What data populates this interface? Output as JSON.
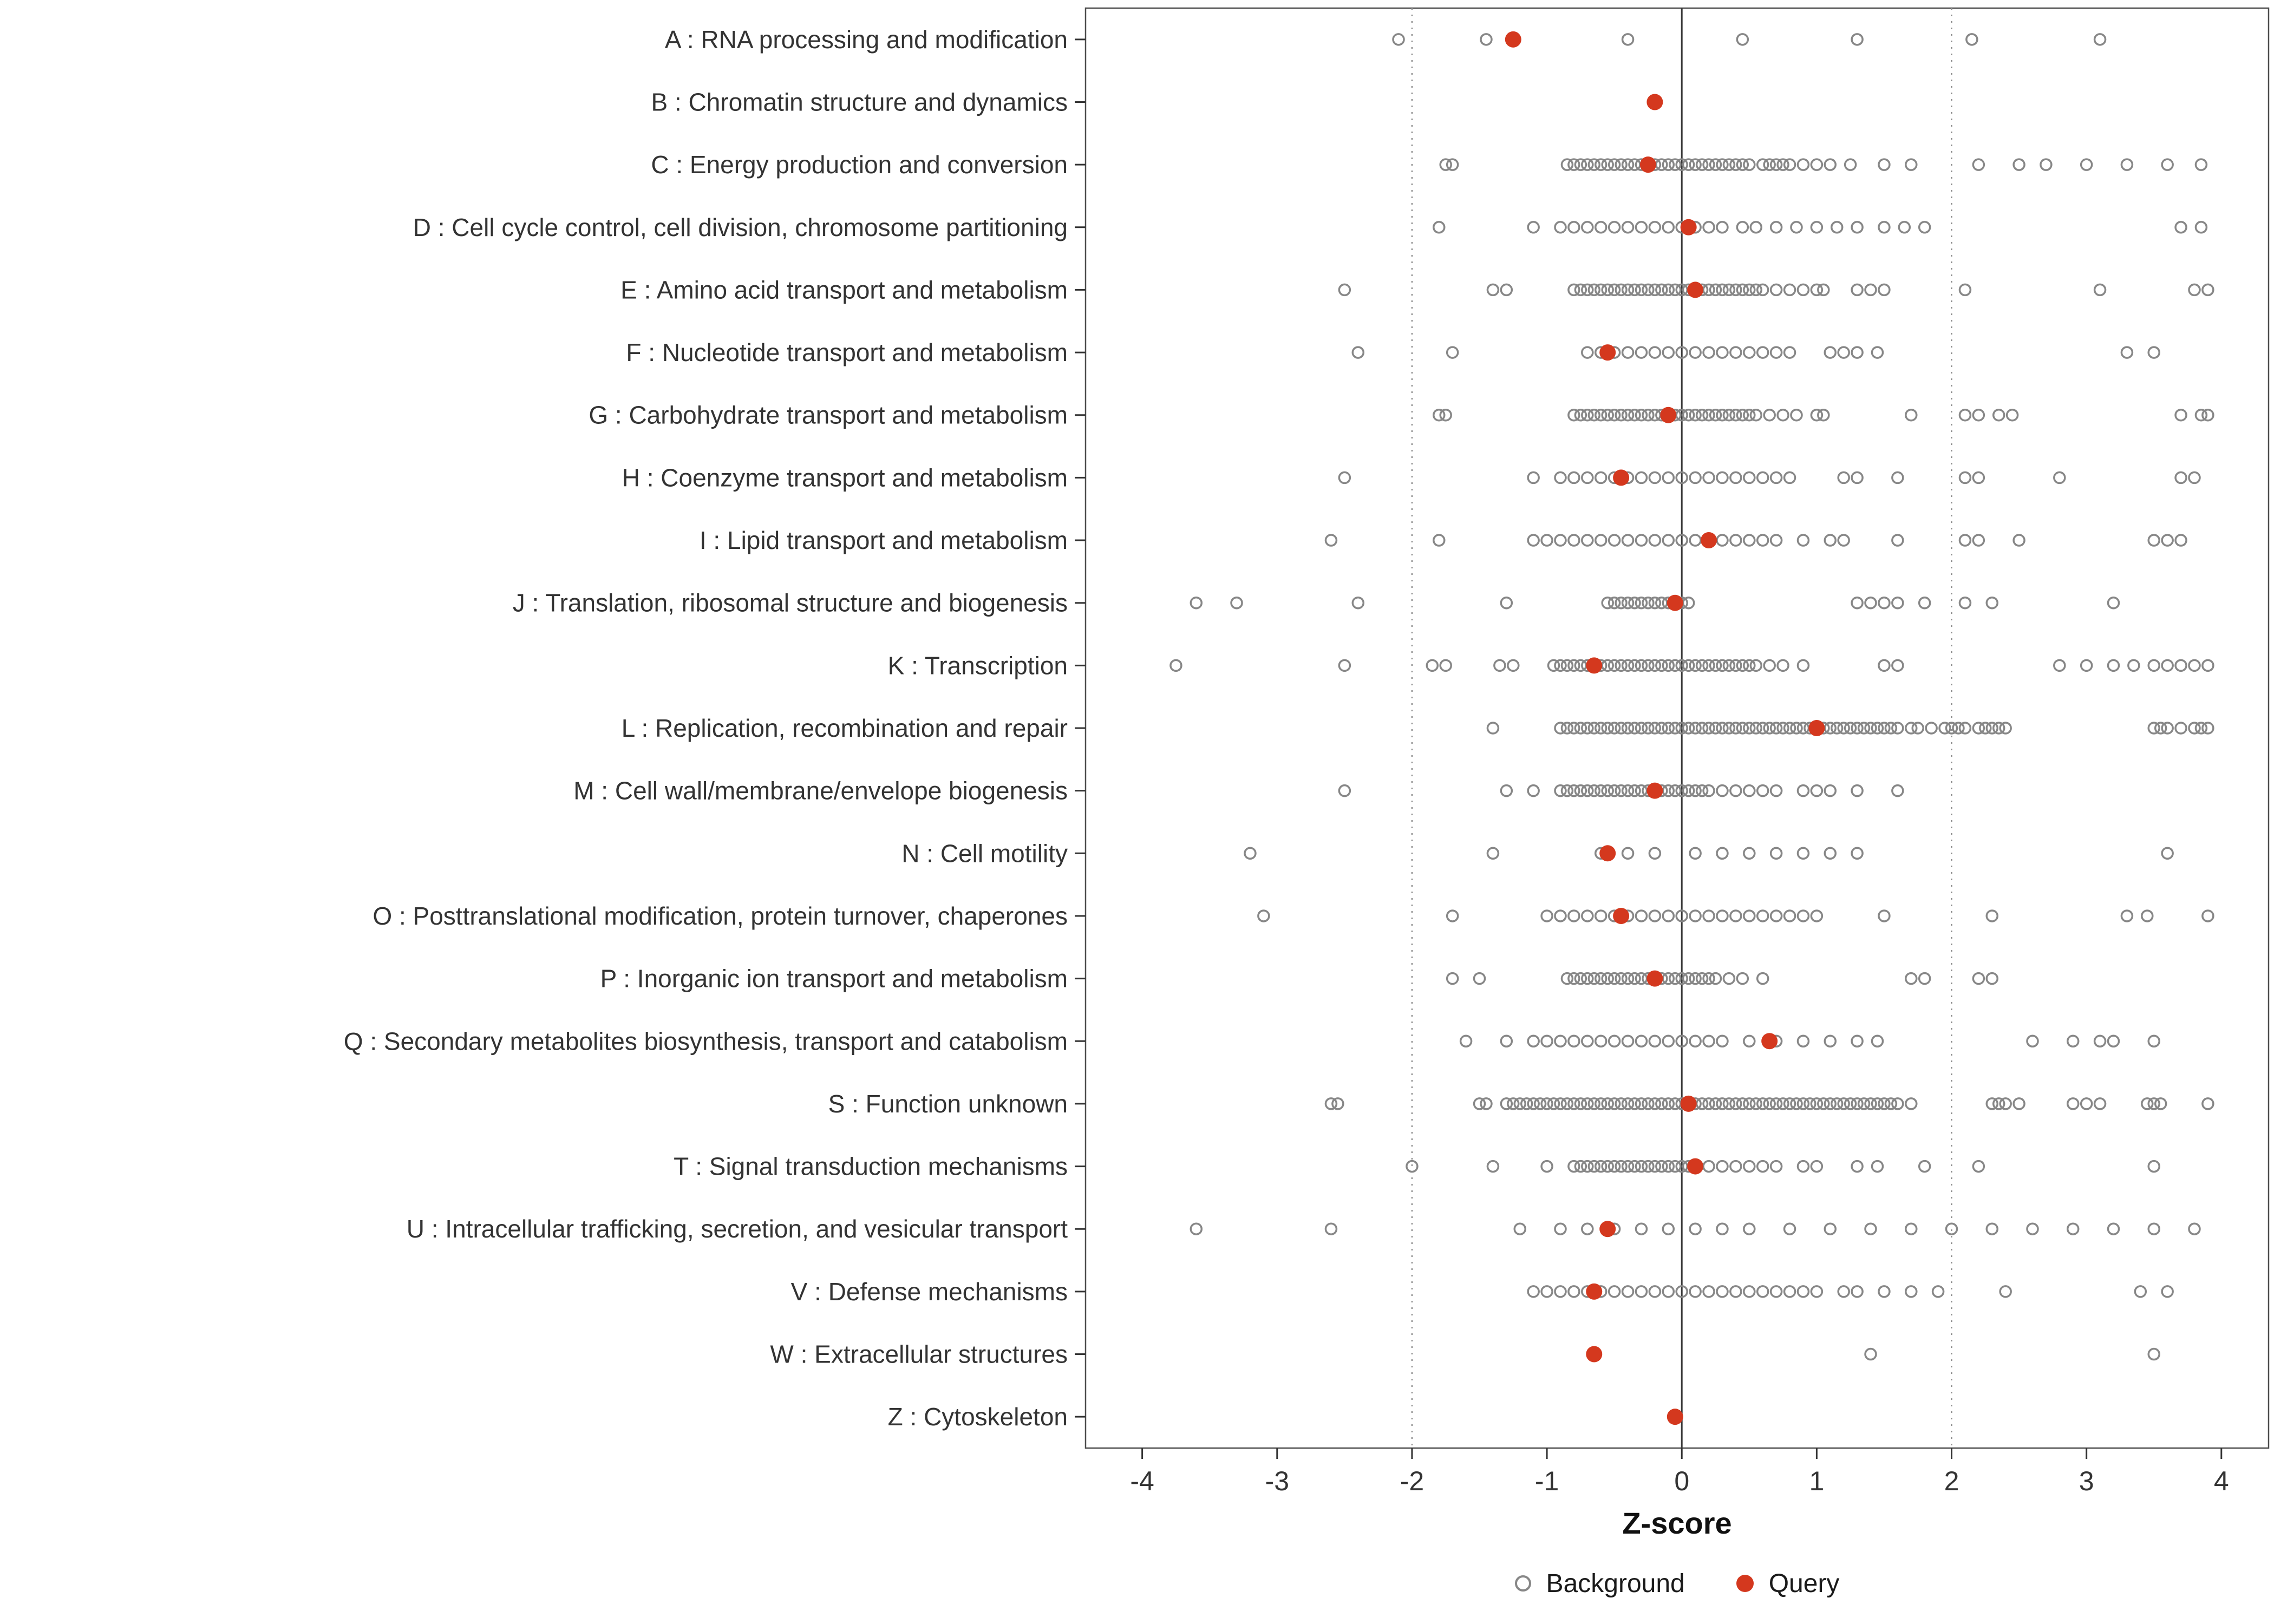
{
  "legend": {
    "items": [
      {
        "label": "Background",
        "type": "open-circle",
        "color": "#878787"
      },
      {
        "label": "Query",
        "type": "filled-circle",
        "color": "#d4381e"
      }
    ]
  },
  "chart_data": {
    "type": "scatter",
    "subtype": "horizontal-strip-plot",
    "title": "",
    "xlabel": "Z-score",
    "ylabel": "",
    "xlim": [
      -4.42,
      4.35
    ],
    "xticks": [
      -4,
      -3,
      -2,
      -1,
      0,
      1,
      2,
      3,
      4
    ],
    "guides": {
      "solid": [
        0
      ],
      "dotted": [
        -2,
        2
      ]
    },
    "legend_position": "bottom",
    "colors": {
      "background": "#878787",
      "query": "#d4381e",
      "axis_text": "#333333",
      "panel_border": "#4d4d4d",
      "zero_line": "#3c3c3c",
      "dotted_line": "#8c8c8c"
    },
    "categories": [
      {
        "label": "A : RNA processing and modification",
        "query": -1.25,
        "background": [
          -2.1,
          -1.45,
          -0.4,
          0.45,
          1.3,
          2.15,
          3.1
        ]
      },
      {
        "label": "B : Chromatin structure and dynamics",
        "query": -0.2,
        "background": []
      },
      {
        "label": "C : Energy production and conversion",
        "query": -0.25,
        "background": [
          -1.75,
          -1.7,
          -0.85,
          -0.8,
          -0.75,
          -0.7,
          -0.65,
          -0.6,
          -0.55,
          -0.5,
          -0.45,
          -0.4,
          -0.35,
          -0.3,
          -0.25,
          -0.2,
          -0.15,
          -0.1,
          -0.05,
          0,
          0.05,
          0.1,
          0.15,
          0.2,
          0.25,
          0.3,
          0.35,
          0.4,
          0.45,
          0.5,
          0.6,
          0.65,
          0.7,
          0.75,
          0.8,
          0.9,
          1.0,
          1.1,
          1.25,
          1.5,
          1.7,
          2.2,
          2.5,
          2.7,
          3.0,
          3.3,
          3.6,
          3.85
        ]
      },
      {
        "label": "D : Cell cycle control, cell division, chromosome partitioning",
        "query": 0.05,
        "background": [
          -1.8,
          -1.1,
          -0.9,
          -0.8,
          -0.7,
          -0.6,
          -0.5,
          -0.4,
          -0.3,
          -0.2,
          -0.1,
          0,
          0.1,
          0.2,
          0.3,
          0.45,
          0.55,
          0.7,
          0.85,
          1.0,
          1.15,
          1.3,
          1.5,
          1.65,
          1.8,
          3.7,
          3.85
        ]
      },
      {
        "label": "E : Amino acid transport and metabolism",
        "query": 0.1,
        "background": [
          -2.5,
          -1.4,
          -1.3,
          -0.8,
          -0.75,
          -0.7,
          -0.65,
          -0.6,
          -0.55,
          -0.5,
          -0.45,
          -0.4,
          -0.35,
          -0.3,
          -0.25,
          -0.2,
          -0.15,
          -0.1,
          -0.05,
          0,
          0.05,
          0.1,
          0.15,
          0.2,
          0.25,
          0.3,
          0.35,
          0.4,
          0.45,
          0.5,
          0.55,
          0.6,
          0.7,
          0.8,
          0.9,
          1.0,
          1.05,
          1.3,
          1.4,
          1.5,
          2.1,
          3.1,
          3.8,
          3.9
        ]
      },
      {
        "label": "F : Nucleotide transport and metabolism",
        "query": -0.55,
        "background": [
          -2.4,
          -1.7,
          -0.7,
          -0.6,
          -0.5,
          -0.4,
          -0.3,
          -0.2,
          -0.1,
          0,
          0.1,
          0.2,
          0.3,
          0.4,
          0.5,
          0.6,
          0.7,
          0.8,
          1.1,
          1.2,
          1.3,
          1.45,
          3.3,
          3.5
        ]
      },
      {
        "label": "G : Carbohydrate transport and metabolism",
        "query": -0.1,
        "background": [
          -1.8,
          -1.75,
          -0.8,
          -0.75,
          -0.7,
          -0.65,
          -0.6,
          -0.55,
          -0.5,
          -0.45,
          -0.4,
          -0.35,
          -0.3,
          -0.25,
          -0.2,
          -0.15,
          -0.1,
          -0.05,
          0,
          0.05,
          0.1,
          0.15,
          0.2,
          0.25,
          0.3,
          0.35,
          0.4,
          0.45,
          0.5,
          0.55,
          0.65,
          0.75,
          0.85,
          1.0,
          1.05,
          1.7,
          2.1,
          2.2,
          2.35,
          2.45,
          3.7,
          3.85,
          3.9
        ]
      },
      {
        "label": "H : Coenzyme transport and metabolism",
        "query": -0.45,
        "background": [
          -2.5,
          -1.1,
          -0.9,
          -0.8,
          -0.7,
          -0.6,
          -0.5,
          -0.4,
          -0.3,
          -0.2,
          -0.1,
          0,
          0.1,
          0.2,
          0.3,
          0.4,
          0.5,
          0.6,
          0.7,
          0.8,
          1.2,
          1.3,
          1.6,
          2.1,
          2.2,
          2.8,
          3.7,
          3.8
        ]
      },
      {
        "label": "I : Lipid transport and metabolism",
        "query": 0.2,
        "background": [
          -2.6,
          -1.8,
          -1.1,
          -1.0,
          -0.9,
          -0.8,
          -0.7,
          -0.6,
          -0.5,
          -0.4,
          -0.3,
          -0.2,
          -0.1,
          0,
          0.1,
          0.3,
          0.4,
          0.5,
          0.6,
          0.7,
          0.9,
          1.1,
          1.2,
          1.6,
          2.1,
          2.2,
          2.5,
          3.5,
          3.6,
          3.7
        ]
      },
      {
        "label": "J : Translation, ribosomal structure and biogenesis",
        "query": -0.05,
        "background": [
          -3.6,
          -3.3,
          -2.4,
          -1.3,
          -0.55,
          -0.5,
          -0.45,
          -0.4,
          -0.35,
          -0.3,
          -0.25,
          -0.2,
          -0.15,
          -0.1,
          -0.05,
          0,
          0.05,
          1.3,
          1.4,
          1.5,
          1.6,
          1.8,
          2.1,
          2.3,
          3.2
        ]
      },
      {
        "label": "K : Transcription",
        "query": -0.65,
        "background": [
          -3.75,
          -2.5,
          -1.85,
          -1.75,
          -1.35,
          -1.25,
          -0.95,
          -0.9,
          -0.85,
          -0.8,
          -0.75,
          -0.7,
          -0.65,
          -0.6,
          -0.55,
          -0.5,
          -0.45,
          -0.4,
          -0.35,
          -0.3,
          -0.25,
          -0.2,
          -0.15,
          -0.1,
          -0.05,
          0,
          0.05,
          0.1,
          0.15,
          0.2,
          0.25,
          0.3,
          0.35,
          0.4,
          0.45,
          0.5,
          0.55,
          0.65,
          0.75,
          0.9,
          1.5,
          1.6,
          2.8,
          3.0,
          3.2,
          3.35,
          3.5,
          3.6,
          3.7,
          3.8,
          3.9
        ]
      },
      {
        "label": "L : Replication, recombination and repair",
        "query": 1.0,
        "background": [
          -1.4,
          -0.9,
          -0.85,
          -0.8,
          -0.75,
          -0.7,
          -0.65,
          -0.6,
          -0.55,
          -0.5,
          -0.45,
          -0.4,
          -0.35,
          -0.3,
          -0.25,
          -0.2,
          -0.15,
          -0.1,
          -0.05,
          0,
          0.05,
          0.1,
          0.15,
          0.2,
          0.25,
          0.3,
          0.35,
          0.4,
          0.45,
          0.5,
          0.55,
          0.6,
          0.65,
          0.7,
          0.75,
          0.8,
          0.85,
          0.9,
          0.95,
          1.05,
          1.1,
          1.15,
          1.2,
          1.25,
          1.3,
          1.35,
          1.4,
          1.45,
          1.5,
          1.55,
          1.6,
          1.7,
          1.75,
          1.85,
          1.95,
          2.0,
          2.05,
          2.1,
          2.2,
          2.25,
          2.3,
          2.35,
          2.4,
          3.5,
          3.55,
          3.6,
          3.7,
          3.8,
          3.85,
          3.9
        ]
      },
      {
        "label": "M : Cell wall/membrane/envelope biogenesis",
        "query": -0.2,
        "background": [
          -2.5,
          -1.3,
          -1.1,
          -0.9,
          -0.85,
          -0.8,
          -0.75,
          -0.7,
          -0.65,
          -0.6,
          -0.55,
          -0.5,
          -0.45,
          -0.4,
          -0.35,
          -0.3,
          -0.25,
          -0.2,
          -0.15,
          -0.1,
          -0.05,
          0,
          0.05,
          0.1,
          0.15,
          0.2,
          0.3,
          0.4,
          0.5,
          0.6,
          0.7,
          0.9,
          1.0,
          1.1,
          1.3,
          1.6
        ]
      },
      {
        "label": "N : Cell motility",
        "query": -0.55,
        "background": [
          -3.2,
          -1.4,
          -0.6,
          -0.4,
          -0.2,
          0.1,
          0.3,
          0.5,
          0.7,
          0.9,
          1.1,
          1.3,
          3.6
        ]
      },
      {
        "label": "O : Posttranslational modification, protein turnover, chaperones",
        "query": -0.45,
        "background": [
          -3.1,
          -1.7,
          -1.0,
          -0.9,
          -0.8,
          -0.7,
          -0.6,
          -0.5,
          -0.4,
          -0.3,
          -0.2,
          -0.1,
          0,
          0.1,
          0.2,
          0.3,
          0.4,
          0.5,
          0.6,
          0.7,
          0.8,
          0.9,
          1.0,
          1.5,
          2.3,
          3.3,
          3.45,
          3.9
        ]
      },
      {
        "label": "P : Inorganic ion transport and metabolism",
        "query": -0.2,
        "background": [
          -1.7,
          -1.5,
          -0.85,
          -0.8,
          -0.75,
          -0.7,
          -0.65,
          -0.6,
          -0.55,
          -0.5,
          -0.45,
          -0.4,
          -0.35,
          -0.3,
          -0.25,
          -0.2,
          -0.15,
          -0.1,
          -0.05,
          0,
          0.05,
          0.1,
          0.15,
          0.2,
          0.25,
          0.35,
          0.45,
          0.6,
          1.7,
          1.8,
          2.2,
          2.3
        ]
      },
      {
        "label": "Q : Secondary metabolites biosynthesis, transport and catabolism",
        "query": 0.65,
        "background": [
          -1.6,
          -1.3,
          -1.1,
          -1.0,
          -0.9,
          -0.8,
          -0.7,
          -0.6,
          -0.5,
          -0.4,
          -0.3,
          -0.2,
          -0.1,
          0,
          0.1,
          0.2,
          0.3,
          0.5,
          0.7,
          0.9,
          1.1,
          1.3,
          1.45,
          2.6,
          2.9,
          3.1,
          3.2,
          3.5
        ]
      },
      {
        "label": "S : Function unknown",
        "query": 0.05,
        "background": [
          -2.6,
          -2.55,
          -1.5,
          -1.45,
          -1.3,
          -1.25,
          -1.2,
          -1.15,
          -1.1,
          -1.05,
          -1.0,
          -0.95,
          -0.9,
          -0.85,
          -0.8,
          -0.75,
          -0.7,
          -0.65,
          -0.6,
          -0.55,
          -0.5,
          -0.45,
          -0.4,
          -0.35,
          -0.3,
          -0.25,
          -0.2,
          -0.15,
          -0.1,
          -0.05,
          0,
          0.05,
          0.1,
          0.15,
          0.2,
          0.25,
          0.3,
          0.35,
          0.4,
          0.45,
          0.5,
          0.55,
          0.6,
          0.65,
          0.7,
          0.75,
          0.8,
          0.85,
          0.9,
          0.95,
          1.0,
          1.05,
          1.1,
          1.15,
          1.2,
          1.25,
          1.3,
          1.35,
          1.4,
          1.45,
          1.5,
          1.55,
          1.6,
          1.7,
          2.3,
          2.35,
          2.4,
          2.5,
          2.9,
          3.0,
          3.1,
          3.45,
          3.5,
          3.55,
          3.9
        ]
      },
      {
        "label": "T : Signal transduction mechanisms",
        "query": 0.1,
        "background": [
          -2.0,
          -1.4,
          -1.0,
          -0.8,
          -0.75,
          -0.7,
          -0.65,
          -0.6,
          -0.55,
          -0.5,
          -0.45,
          -0.4,
          -0.35,
          -0.3,
          -0.25,
          -0.2,
          -0.15,
          -0.1,
          -0.05,
          0,
          0.05,
          0.1,
          0.2,
          0.3,
          0.4,
          0.5,
          0.6,
          0.7,
          0.9,
          1.0,
          1.3,
          1.45,
          1.8,
          2.2,
          3.5
        ]
      },
      {
        "label": "U : Intracellular trafficking, secretion, and vesicular transport",
        "query": -0.55,
        "background": [
          -3.6,
          -2.6,
          -1.2,
          -0.9,
          -0.7,
          -0.5,
          -0.3,
          -0.1,
          0.1,
          0.3,
          0.5,
          0.8,
          1.1,
          1.4,
          1.7,
          2.0,
          2.3,
          2.6,
          2.9,
          3.2,
          3.5,
          3.8
        ]
      },
      {
        "label": "V : Defense mechanisms",
        "query": -0.65,
        "background": [
          -1.1,
          -1.0,
          -0.9,
          -0.8,
          -0.7,
          -0.6,
          -0.5,
          -0.4,
          -0.3,
          -0.2,
          -0.1,
          0,
          0.1,
          0.2,
          0.3,
          0.4,
          0.5,
          0.6,
          0.7,
          0.8,
          0.9,
          1.0,
          1.2,
          1.3,
          1.5,
          1.7,
          1.9,
          2.4,
          3.4,
          3.6
        ]
      },
      {
        "label": "W : Extracellular structures",
        "query": -0.65,
        "background": [
          1.4,
          3.5
        ]
      },
      {
        "label": "Z : Cytoskeleton",
        "query": -0.05,
        "background": []
      }
    ]
  }
}
